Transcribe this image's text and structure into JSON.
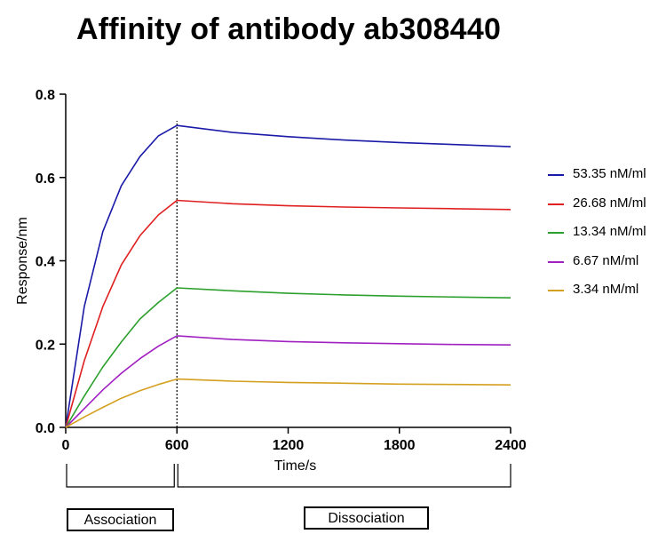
{
  "chart_data": {
    "type": "line",
    "title": "Affinity of antibody ab308440",
    "xlabel": "Time/s",
    "ylabel": "Response/nm",
    "xlim": [
      0,
      2400
    ],
    "ylim": [
      0,
      0.8
    ],
    "x_ticks": [
      "0",
      "600",
      "1200",
      "1800",
      "2400"
    ],
    "y_ticks": [
      "0.0",
      "0.2",
      "0.4",
      "0.6",
      "0.8"
    ],
    "grid": false,
    "legend_position": "right",
    "phase_boundary_x": 600,
    "annotations": [
      {
        "label": "Association",
        "x_range": [
          0,
          600
        ]
      },
      {
        "label": "Dissociation",
        "x_range": [
          600,
          2400
        ]
      }
    ],
    "series": [
      {
        "name": "53.35 nM/ml",
        "color": "#1a1aa8",
        "x": [
          0,
          100,
          200,
          300,
          400,
          500,
          600,
          900,
          1200,
          1500,
          1800,
          2100,
          2400
        ],
        "y": [
          0.0,
          0.29,
          0.47,
          0.58,
          0.65,
          0.7,
          0.725,
          0.708,
          0.698,
          0.69,
          0.684,
          0.679,
          0.674
        ]
      },
      {
        "name": "26.68 nM/ml",
        "color": "#e02020",
        "x": [
          0,
          100,
          200,
          300,
          400,
          500,
          600,
          900,
          1200,
          1500,
          1800,
          2100,
          2400
        ],
        "y": [
          0.0,
          0.16,
          0.29,
          0.39,
          0.46,
          0.51,
          0.545,
          0.537,
          0.532,
          0.529,
          0.527,
          0.525,
          0.523
        ]
      },
      {
        "name": "13.34 nM/ml",
        "color": "#2ca02c",
        "x": [
          0,
          100,
          200,
          300,
          400,
          500,
          600,
          900,
          1200,
          1500,
          1800,
          2100,
          2400
        ],
        "y": [
          0.0,
          0.075,
          0.145,
          0.205,
          0.26,
          0.3,
          0.335,
          0.328,
          0.322,
          0.318,
          0.315,
          0.313,
          0.311
        ]
      },
      {
        "name": "6.67 nM/ml",
        "color": "#a020c0",
        "x": [
          0,
          100,
          200,
          300,
          400,
          500,
          600,
          900,
          1200,
          1500,
          1800,
          2100,
          2400
        ],
        "y": [
          0.0,
          0.045,
          0.09,
          0.13,
          0.165,
          0.195,
          0.22,
          0.211,
          0.206,
          0.203,
          0.201,
          0.199,
          0.198
        ]
      },
      {
        "name": "3.34 nM/ml",
        "color": "#d4a020",
        "x": [
          0,
          100,
          200,
          300,
          400,
          500,
          600,
          900,
          1200,
          1500,
          1800,
          2100,
          2400
        ],
        "y": [
          0.0,
          0.025,
          0.048,
          0.07,
          0.088,
          0.103,
          0.116,
          0.111,
          0.108,
          0.106,
          0.104,
          0.103,
          0.102
        ]
      }
    ]
  }
}
